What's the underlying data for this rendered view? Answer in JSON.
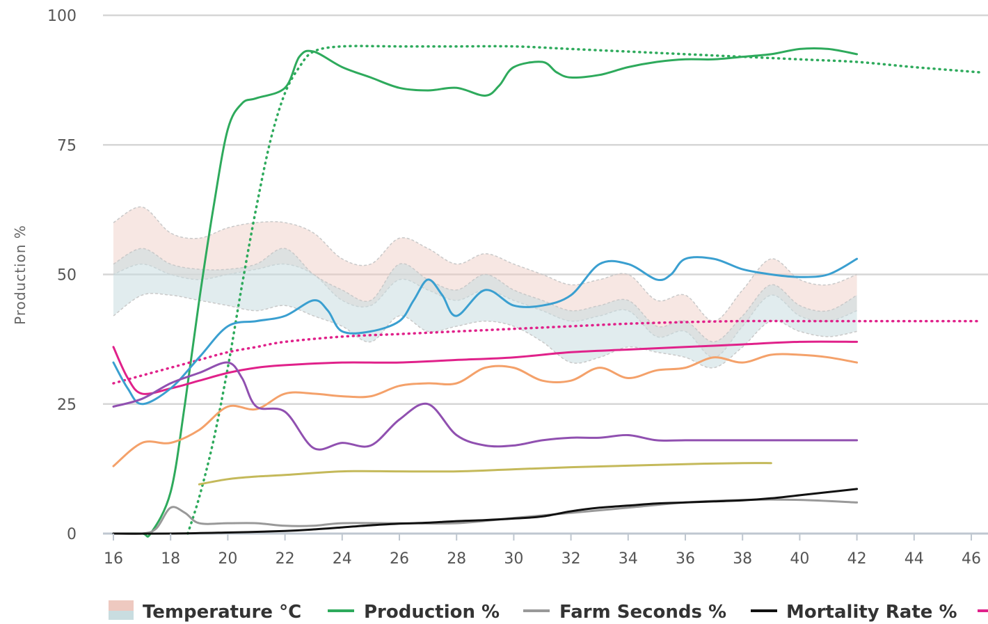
{
  "chart_data": {
    "type": "line",
    "title": "",
    "ylabel": "Production %",
    "xlabel": "",
    "xlim": [
      16,
      46
    ],
    "ylim": [
      0,
      100
    ],
    "x_ticks": [
      "16",
      "18",
      "20",
      "22",
      "24",
      "26",
      "28",
      "30",
      "32",
      "34",
      "36",
      "38",
      "40",
      "42",
      "44",
      "46"
    ],
    "y_ticks": [
      "0",
      "25",
      "50",
      "75",
      "100"
    ],
    "grid": true,
    "legend_position": "bottom",
    "legend": [
      {
        "label": "Temperature °C",
        "kind": "band"
      },
      {
        "label": "Production %",
        "kind": "line",
        "color": "#2eaa5c"
      },
      {
        "label": "Farm Seconds %",
        "kind": "line",
        "color": "#999999"
      },
      {
        "label": "Mortality Rate %",
        "kind": "line",
        "color": "#111111"
      },
      {
        "label": "",
        "kind": "line",
        "color": "#e0218a"
      }
    ],
    "bands": [
      {
        "color": "#eec9c0",
        "opacity": 0.45,
        "x": [
          16,
          17,
          18,
          19,
          20,
          21,
          22,
          23,
          24,
          25,
          26,
          27,
          28,
          29,
          30,
          31,
          32,
          33,
          34,
          35,
          36,
          37,
          38,
          39,
          40,
          41,
          42
        ],
        "upper": [
          60,
          63,
          58,
          57,
          59,
          60,
          60,
          58,
          53,
          52,
          57,
          55,
          52,
          54,
          52,
          50,
          48,
          49,
          50,
          45,
          46,
          41,
          47,
          53,
          49,
          48,
          50
        ],
        "lower": [
          50,
          52,
          50,
          49,
          50,
          51,
          52,
          50,
          45,
          44,
          49,
          47,
          45,
          47,
          45,
          43,
          41,
          42,
          43,
          38,
          39,
          34,
          40,
          46,
          42,
          41,
          43
        ]
      },
      {
        "color": "#c9dde0",
        "opacity": 0.55,
        "x": [
          16,
          17,
          18,
          19,
          20,
          21,
          22,
          23,
          24,
          25,
          26,
          27,
          28,
          29,
          30,
          31,
          32,
          33,
          34,
          35,
          36,
          37,
          38,
          39,
          40,
          41,
          42
        ],
        "upper": [
          52,
          55,
          52,
          51,
          51,
          52,
          55,
          50,
          47,
          45,
          52,
          49,
          47,
          50,
          47,
          45,
          43,
          44,
          45,
          40,
          41,
          37,
          42,
          48,
          44,
          43,
          46
        ],
        "lower": [
          42,
          46,
          46,
          45,
          44,
          43,
          44,
          42,
          40,
          37,
          42,
          39,
          40,
          41,
          40,
          37,
          33,
          34,
          36,
          35,
          34,
          32,
          36,
          41,
          39,
          38,
          39
        ]
      }
    ],
    "series": [
      {
        "name": "Production %",
        "color": "#2eaa5c",
        "style": "solid",
        "width": 3,
        "x": [
          16,
          17,
          17.3,
          18,
          18.5,
          19,
          19.5,
          20,
          20.5,
          21,
          22,
          22.5,
          23,
          24,
          25,
          26,
          27,
          28,
          29,
          29.5,
          30,
          31,
          31.5,
          32,
          33,
          34,
          35,
          36,
          37,
          38,
          39,
          40,
          41,
          42
        ],
        "y": [
          0,
          0,
          0,
          8,
          25,
          45,
          63,
          78,
          83,
          84,
          86,
          92,
          93,
          90,
          88,
          86,
          85.5,
          86,
          84.5,
          86.5,
          90,
          91,
          89,
          88,
          88.5,
          90,
          91,
          91.5,
          91.5,
          92,
          92.5,
          93.5,
          93.5,
          92.5
        ]
      },
      {
        "name": "",
        "color": "#2eaa5c",
        "style": "dotted",
        "width": 3,
        "x": [
          18.6,
          19,
          19.5,
          20,
          20.5,
          21,
          21.5,
          22,
          22.5,
          23,
          24,
          26,
          28,
          30,
          32,
          34,
          36,
          38,
          40,
          42,
          44,
          46.3
        ],
        "y": [
          0,
          7,
          18,
          32,
          48,
          63,
          76,
          85,
          90,
          93,
          94,
          94,
          94,
          94,
          93.5,
          93,
          92.5,
          92,
          91.5,
          91,
          90,
          89
        ]
      },
      {
        "name": "Farm Seconds %",
        "color": "#999999",
        "style": "solid",
        "width": 3,
        "x": [
          16,
          17,
          17.5,
          18,
          18.5,
          19,
          20,
          21,
          22,
          23,
          24,
          26,
          28,
          30,
          32,
          34,
          36,
          38,
          40,
          42
        ],
        "y": [
          0,
          0,
          1,
          5,
          4,
          2,
          2,
          2,
          1.5,
          1.5,
          2,
          2,
          2,
          3,
          4,
          5,
          6,
          6.5,
          6.5,
          6
        ]
      },
      {
        "name": "Mortality Rate %",
        "color": "#111111",
        "style": "solid",
        "width": 3,
        "x": [
          16,
          18,
          20,
          22,
          23,
          24,
          25,
          26,
          27,
          28,
          29,
          30,
          31,
          32,
          33,
          34,
          35,
          36,
          37,
          38,
          39,
          40,
          41,
          42
        ],
        "y": [
          0,
          0,
          0.2,
          0.5,
          0.8,
          1.2,
          1.6,
          1.9,
          2.1,
          2.4,
          2.6,
          2.9,
          3.3,
          4.3,
          5.0,
          5.4,
          5.8,
          6.0,
          6.2,
          6.4,
          6.8,
          7.4,
          8.0,
          8.6
        ]
      },
      {
        "name": "",
        "color": "#e0218a",
        "style": "solid",
        "width": 3,
        "x": [
          16,
          16.5,
          17,
          18,
          19,
          20,
          21,
          22,
          24,
          26,
          28,
          30,
          32,
          34,
          36,
          38,
          40,
          42
        ],
        "y": [
          36,
          30,
          27,
          28,
          29.5,
          31,
          32,
          32.5,
          33,
          33,
          33.5,
          34,
          35,
          35.5,
          36,
          36.5,
          37,
          37
        ]
      },
      {
        "name": "",
        "color": "#e0218a",
        "style": "dotted",
        "width": 3,
        "x": [
          16,
          17,
          18,
          19,
          20,
          21,
          22,
          24,
          26,
          28,
          30,
          32,
          34,
          36,
          38,
          40,
          42,
          44,
          46.3
        ],
        "y": [
          29,
          30.5,
          32,
          33.5,
          35,
          36,
          37,
          38,
          38.5,
          39,
          39.5,
          40,
          40.5,
          40.8,
          41,
          41,
          41,
          41,
          41
        ]
      },
      {
        "name": "",
        "color": "#3a9fd0",
        "style": "solid",
        "width": 3,
        "x": [
          16,
          16.5,
          17,
          18,
          19,
          20,
          21,
          22,
          23,
          23.5,
          24,
          25,
          26,
          26.5,
          27,
          27.5,
          28,
          29,
          30,
          31,
          32,
          33,
          34,
          35,
          35.5,
          36,
          37,
          38,
          39,
          40,
          41,
          42
        ],
        "y": [
          33,
          28,
          25,
          28,
          34,
          40,
          41,
          42,
          45,
          43,
          39,
          39,
          41,
          45,
          49,
          46,
          42,
          47,
          44,
          44,
          46,
          52,
          52,
          49,
          50,
          53,
          53,
          51,
          50,
          49.5,
          50,
          53
        ]
      },
      {
        "name": "",
        "color": "#f4a16a",
        "style": "solid",
        "width": 3,
        "x": [
          16,
          17,
          18,
          19,
          20,
          21,
          22,
          23,
          24,
          25,
          26,
          27,
          28,
          29,
          30,
          31,
          32,
          33,
          34,
          35,
          36,
          37,
          38,
          39,
          40,
          41,
          42
        ],
        "y": [
          13,
          17.5,
          17.5,
          20,
          24.5,
          24,
          27,
          27,
          26.5,
          26.5,
          28.5,
          29,
          29,
          32,
          32,
          29.5,
          29.5,
          32,
          30,
          31.5,
          32,
          34,
          33,
          34.5,
          34.5,
          34,
          33
        ]
      },
      {
        "name": "",
        "color": "#9050b0",
        "style": "solid",
        "width": 3,
        "x": [
          16,
          17,
          18,
          19,
          20,
          20.5,
          21,
          22,
          23,
          24,
          25,
          26,
          27,
          28,
          29,
          30,
          31,
          32,
          33,
          34,
          35,
          36,
          37,
          38,
          39,
          40,
          41,
          42
        ],
        "y": [
          24.5,
          26,
          29,
          31,
          33,
          30,
          24.5,
          23.5,
          16.5,
          17.5,
          17,
          22,
          25,
          19,
          17,
          17,
          18,
          18.5,
          18.5,
          19,
          18,
          18,
          18,
          18,
          18,
          18,
          18,
          18
        ]
      },
      {
        "name": "",
        "color": "#c4b95a",
        "style": "solid",
        "width": 3,
        "x": [
          19,
          20,
          21,
          22,
          24,
          26,
          28,
          30,
          32,
          34,
          36,
          38,
          39
        ],
        "y": [
          9.5,
          10.5,
          11,
          11.3,
          12,
          12,
          12,
          12.4,
          12.8,
          13.1,
          13.4,
          13.6,
          13.6
        ]
      }
    ]
  }
}
